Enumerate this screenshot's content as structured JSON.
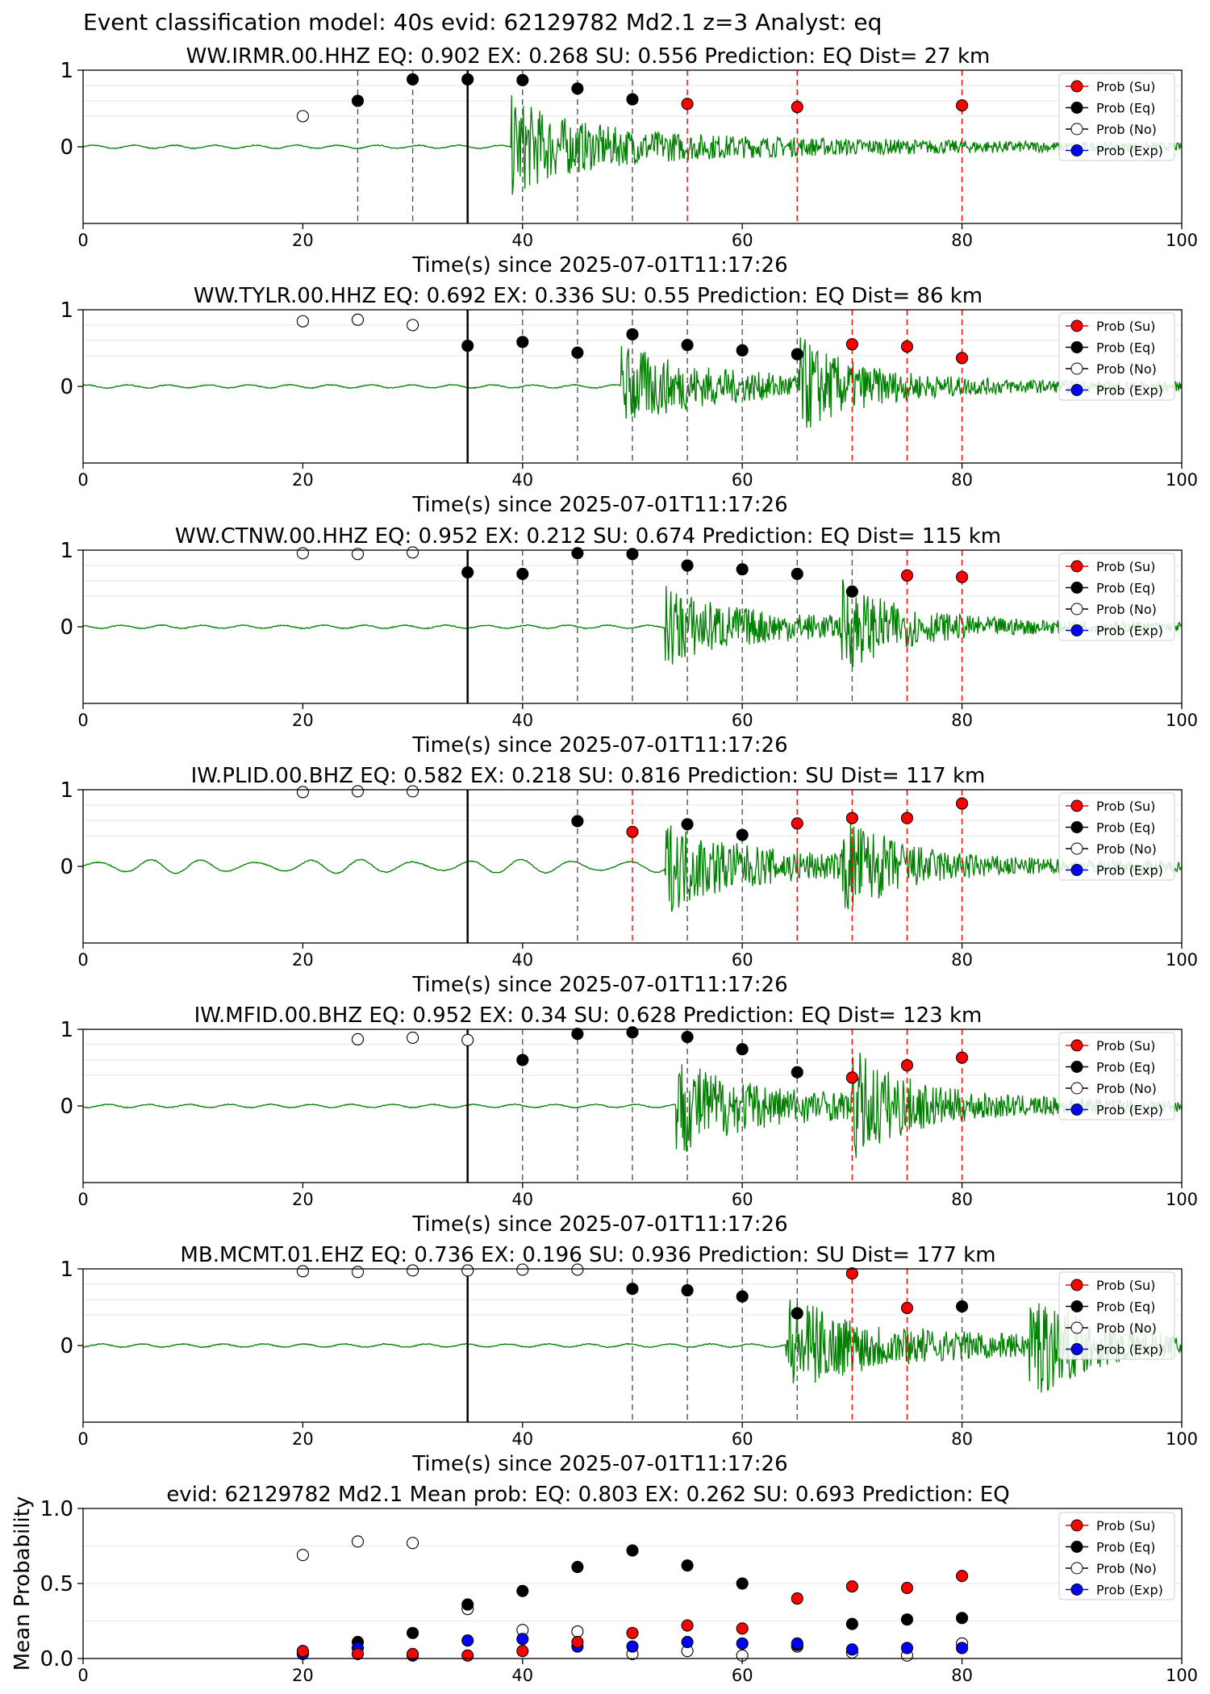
{
  "figure": {
    "suptitle": "Event classification model: 40s evid: 62129782 Md2.1 z=3 Analyst: eq"
  },
  "legend_labels": [
    "Prob (Su)",
    "Prob (Eq)",
    "Prob (No)",
    "Prob (Exp)"
  ],
  "colors": {
    "su": "#ff0000",
    "eq": "#000000",
    "no": "#ffffff",
    "exp": "#0000ff",
    "waveform": "#008000",
    "eq_line": "#555555",
    "su_line": "#ff0000"
  },
  "chart_data": [
    {
      "type": "scatter",
      "title": "WW.IRMR.00.HHZ   EQ: 0.902  EX: 0.268  SU: 0.556   Prediction: EQ    Dist= 27 km",
      "xlabel": "Time(s) since 2025-07-01T11:17:26",
      "xlim": [
        0,
        100
      ],
      "xticks": [
        "0",
        "20",
        "40",
        "60",
        "80",
        "100"
      ],
      "yticks": [
        "1",
        "0"
      ],
      "p_arrival": 35,
      "signal_onset": 39,
      "waveform_amp": 0.85,
      "points": [
        {
          "t": 20,
          "cls": "no",
          "p": 0.4
        },
        {
          "t": 25,
          "cls": "eq",
          "p": 0.6
        },
        {
          "t": 30,
          "cls": "eq",
          "p": 0.88
        },
        {
          "t": 35,
          "cls": "eq",
          "p": 0.88
        },
        {
          "t": 40,
          "cls": "eq",
          "p": 0.87
        },
        {
          "t": 45,
          "cls": "eq",
          "p": 0.76
        },
        {
          "t": 50,
          "cls": "eq",
          "p": 0.62
        },
        {
          "t": 55,
          "cls": "su",
          "p": 0.56
        },
        {
          "t": 65,
          "cls": "su",
          "p": 0.52
        },
        {
          "t": 80,
          "cls": "su",
          "p": 0.54
        }
      ]
    },
    {
      "type": "scatter",
      "title": "WW.TYLR.00.HHZ   EQ: 0.692  EX: 0.336  SU: 0.55   Prediction: EQ    Dist= 86 km",
      "xlabel": "Time(s) since 2025-07-01T11:17:26",
      "xlim": [
        0,
        100
      ],
      "xticks": [
        "0",
        "20",
        "40",
        "60",
        "80",
        "100"
      ],
      "yticks": [
        "1",
        "0"
      ],
      "p_arrival": 35,
      "signal_onset": 49,
      "waveform_amp": 0.75,
      "points": [
        {
          "t": 20,
          "cls": "no",
          "p": 0.85
        },
        {
          "t": 25,
          "cls": "no",
          "p": 0.87
        },
        {
          "t": 30,
          "cls": "no",
          "p": 0.8
        },
        {
          "t": 35,
          "cls": "eq",
          "p": 0.53
        },
        {
          "t": 40,
          "cls": "eq",
          "p": 0.58
        },
        {
          "t": 45,
          "cls": "eq",
          "p": 0.44
        },
        {
          "t": 50,
          "cls": "eq",
          "p": 0.68
        },
        {
          "t": 55,
          "cls": "eq",
          "p": 0.54
        },
        {
          "t": 60,
          "cls": "eq",
          "p": 0.47
        },
        {
          "t": 65,
          "cls": "eq",
          "p": 0.42
        },
        {
          "t": 70,
          "cls": "su",
          "p": 0.55
        },
        {
          "t": 75,
          "cls": "su",
          "p": 0.52
        },
        {
          "t": 80,
          "cls": "su",
          "p": 0.37
        }
      ]
    },
    {
      "type": "scatter",
      "title": "WW.CTNW.00.HHZ   EQ: 0.952  EX: 0.212  SU: 0.674   Prediction: EQ    Dist= 115 km",
      "xlabel": "Time(s) since 2025-07-01T11:17:26",
      "xlim": [
        0,
        100
      ],
      "xticks": [
        "0",
        "20",
        "40",
        "60",
        "80",
        "100"
      ],
      "yticks": [
        "1",
        "0"
      ],
      "p_arrival": 35,
      "signal_onset": 53,
      "waveform_amp": 0.7,
      "points": [
        {
          "t": 20,
          "cls": "no",
          "p": 0.96
        },
        {
          "t": 25,
          "cls": "no",
          "p": 0.95
        },
        {
          "t": 30,
          "cls": "no",
          "p": 0.97
        },
        {
          "t": 35,
          "cls": "eq",
          "p": 0.71
        },
        {
          "t": 40,
          "cls": "eq",
          "p": 0.69
        },
        {
          "t": 45,
          "cls": "eq",
          "p": 0.96
        },
        {
          "t": 50,
          "cls": "eq",
          "p": 0.95
        },
        {
          "t": 55,
          "cls": "eq",
          "p": 0.8
        },
        {
          "t": 60,
          "cls": "eq",
          "p": 0.75
        },
        {
          "t": 65,
          "cls": "eq",
          "p": 0.69
        },
        {
          "t": 70,
          "cls": "eq",
          "p": 0.46
        },
        {
          "t": 75,
          "cls": "su",
          "p": 0.67
        },
        {
          "t": 80,
          "cls": "su",
          "p": 0.65
        }
      ]
    },
    {
      "type": "scatter",
      "title": "IW.PLID.00.BHZ   EQ: 0.582  EX: 0.218  SU: 0.816   Prediction: SU    Dist= 117 km",
      "xlabel": "Time(s) since 2025-07-01T11:17:26",
      "xlim": [
        0,
        100
      ],
      "xticks": [
        "0",
        "20",
        "40",
        "60",
        "80",
        "100"
      ],
      "yticks": [
        "1",
        "0"
      ],
      "p_arrival": 35,
      "signal_onset": 53,
      "waveform_amp": 0.8,
      "points": [
        {
          "t": 20,
          "cls": "no",
          "p": 0.97
        },
        {
          "t": 25,
          "cls": "no",
          "p": 0.98
        },
        {
          "t": 30,
          "cls": "no",
          "p": 0.98
        },
        {
          "t": 45,
          "cls": "eq",
          "p": 0.59
        },
        {
          "t": 50,
          "cls": "su",
          "p": 0.45
        },
        {
          "t": 55,
          "cls": "eq",
          "p": 0.55
        },
        {
          "t": 60,
          "cls": "eq",
          "p": 0.41
        },
        {
          "t": 65,
          "cls": "su",
          "p": 0.56
        },
        {
          "t": 70,
          "cls": "su",
          "p": 0.63
        },
        {
          "t": 75,
          "cls": "su",
          "p": 0.63
        },
        {
          "t": 80,
          "cls": "su",
          "p": 0.82
        }
      ]
    },
    {
      "type": "scatter",
      "title": "IW.MFID.00.BHZ   EQ: 0.952  EX: 0.34  SU: 0.628   Prediction: EQ    Dist= 123 km",
      "xlabel": "Time(s) since 2025-07-01T11:17:26",
      "xlim": [
        0,
        100
      ],
      "xticks": [
        "0",
        "20",
        "40",
        "60",
        "80",
        "100"
      ],
      "yticks": [
        "1",
        "0"
      ],
      "p_arrival": 35,
      "signal_onset": 54,
      "waveform_amp": 0.85,
      "points": [
        {
          "t": 25,
          "cls": "no",
          "p": 0.87
        },
        {
          "t": 30,
          "cls": "no",
          "p": 0.89
        },
        {
          "t": 35,
          "cls": "no",
          "p": 0.86
        },
        {
          "t": 40,
          "cls": "eq",
          "p": 0.6
        },
        {
          "t": 45,
          "cls": "eq",
          "p": 0.94
        },
        {
          "t": 50,
          "cls": "eq",
          "p": 0.96
        },
        {
          "t": 55,
          "cls": "eq",
          "p": 0.9
        },
        {
          "t": 60,
          "cls": "eq",
          "p": 0.74
        },
        {
          "t": 65,
          "cls": "eq",
          "p": 0.44
        },
        {
          "t": 70,
          "cls": "su",
          "p": 0.37
        },
        {
          "t": 75,
          "cls": "su",
          "p": 0.53
        },
        {
          "t": 80,
          "cls": "su",
          "p": 0.63
        }
      ]
    },
    {
      "type": "scatter",
      "title": "MB.MCMT.01.EHZ   EQ: 0.736  EX: 0.196  SU: 0.936   Prediction: SU    Dist= 177 km",
      "xlabel": "Time(s) since 2025-07-01T11:17:26",
      "xlim": [
        0,
        100
      ],
      "xticks": [
        "0",
        "20",
        "40",
        "60",
        "80",
        "100"
      ],
      "yticks": [
        "1",
        "0"
      ],
      "p_arrival": 35,
      "signal_onset": 64,
      "waveform_amp": 0.9,
      "points": [
        {
          "t": 20,
          "cls": "no",
          "p": 0.97
        },
        {
          "t": 25,
          "cls": "no",
          "p": 0.96
        },
        {
          "t": 30,
          "cls": "no",
          "p": 0.98
        },
        {
          "t": 35,
          "cls": "no",
          "p": 0.98
        },
        {
          "t": 40,
          "cls": "no",
          "p": 0.99
        },
        {
          "t": 45,
          "cls": "no",
          "p": 0.99
        },
        {
          "t": 50,
          "cls": "eq",
          "p": 0.74
        },
        {
          "t": 55,
          "cls": "eq",
          "p": 0.72
        },
        {
          "t": 60,
          "cls": "eq",
          "p": 0.64
        },
        {
          "t": 65,
          "cls": "eq",
          "p": 0.42
        },
        {
          "t": 70,
          "cls": "su",
          "p": 0.94
        },
        {
          "t": 75,
          "cls": "su",
          "p": 0.49
        },
        {
          "t": 80,
          "cls": "eq",
          "p": 0.51
        }
      ]
    },
    {
      "type": "scatter",
      "title": "evid: 62129782  Md2.1   Mean prob:   EQ: 0.803  EX: 0.262  SU: 0.693   Prediction: EQ",
      "ylabel": "Mean Probability",
      "xlim": [
        0,
        100
      ],
      "ylim": [
        0,
        1
      ],
      "xticks": [
        "0",
        "20",
        "40",
        "60",
        "80",
        "100"
      ],
      "yticks": [
        "0.0",
        "0.5",
        "1.0"
      ],
      "x": [
        20,
        25,
        30,
        35,
        40,
        45,
        50,
        55,
        60,
        65,
        70,
        75,
        80
      ],
      "series": [
        {
          "key": "no",
          "values": [
            0.69,
            0.78,
            0.77,
            0.33,
            0.19,
            0.18,
            0.03,
            0.05,
            0.02,
            0.08,
            0.04,
            0.02,
            0.1
          ]
        },
        {
          "key": "eq",
          "values": [
            0.04,
            0.11,
            0.17,
            0.36,
            0.45,
            0.61,
            0.72,
            0.62,
            0.5,
            0.09,
            0.23,
            0.26,
            0.27
          ]
        },
        {
          "key": "exp",
          "values": [
            0.03,
            0.07,
            0.02,
            0.12,
            0.13,
            0.08,
            0.08,
            0.11,
            0.1,
            0.1,
            0.06,
            0.07,
            0.07
          ]
        },
        {
          "key": "su",
          "values": [
            0.05,
            0.03,
            0.03,
            0.02,
            0.05,
            0.11,
            0.17,
            0.22,
            0.2,
            0.4,
            0.48,
            0.47,
            0.55
          ]
        }
      ]
    }
  ]
}
